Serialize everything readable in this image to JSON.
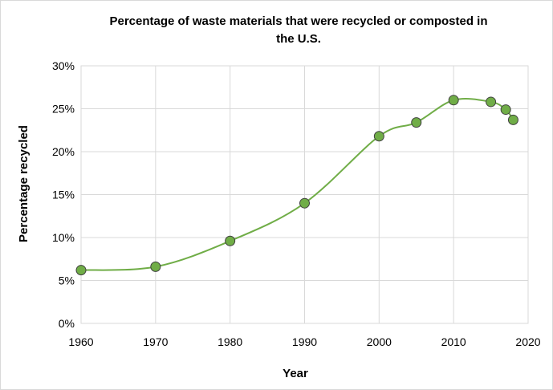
{
  "chart_data": {
    "type": "line",
    "title_line1": "Percentage of waste materials that were recycled or composted in",
    "title_line2": "the U.S.",
    "xlabel": "Year",
    "ylabel": "Percentage recycled",
    "xlim": [
      1960,
      2020
    ],
    "ylim": [
      0,
      30
    ],
    "x_ticks": [
      "1960",
      "1970",
      "1980",
      "1990",
      "2000",
      "2010",
      "2020"
    ],
    "y_ticks": [
      "0%",
      "5%",
      "10%",
      "15%",
      "20%",
      "25%",
      "30%"
    ],
    "grid": true,
    "legend": "none",
    "smoothed": true,
    "series": [
      {
        "x": [
          1960,
          1970,
          1980,
          1990,
          2000,
          2005,
          2010,
          2015,
          2017,
          2018
        ],
        "y": [
          6.2,
          6.6,
          9.6,
          14.0,
          21.8,
          23.4,
          26.0,
          25.8,
          24.9,
          23.7
        ],
        "line_color": "#70ad47",
        "marker_color": "#70ad47",
        "marker_edge": "#404040"
      }
    ]
  }
}
